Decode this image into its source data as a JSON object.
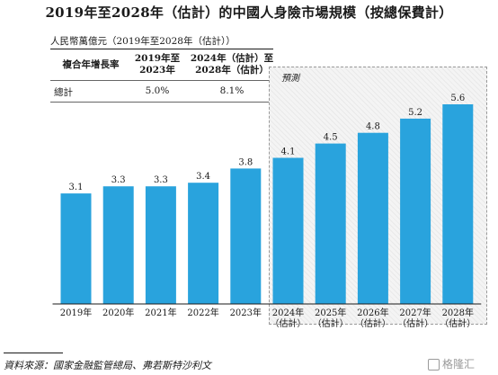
{
  "title": "2019年至2028年（估計）的中國人身險市場規模（按總保費計）",
  "unit_label": "人民幣萬億元（2019年至2028年（估計））",
  "cagr_table": {
    "row_header": "複合年增長率",
    "col1": [
      "2019年至",
      "2023年"
    ],
    "col2": [
      "2024年（估計）至",
      "2028年（估計）"
    ],
    "row_label": "總計",
    "val1": "5.0%",
    "val2": "8.1%"
  },
  "forecast_label": "預測",
  "source": "資料來源：國家金融監管總局、弗若斯特沙利文",
  "watermark": "格隆汇",
  "colors": {
    "bar": "#29a3dd",
    "forecast_bg": "#f4f4f4"
  },
  "chart_data": {
    "type": "bar",
    "categories": [
      "2019年",
      "2020年",
      "2021年",
      "2022年",
      "2023年",
      "2024年（估計）",
      "2025年（估計）",
      "2026年（估計）",
      "2027年（估計）",
      "2028年（估計）"
    ],
    "category_lines": [
      [
        "2019年"
      ],
      [
        "2020年"
      ],
      [
        "2021年"
      ],
      [
        "2022年"
      ],
      [
        "2023年"
      ],
      [
        "2024年",
        "（估計）"
      ],
      [
        "2025年",
        "（估計）"
      ],
      [
        "2026年",
        "（估計）"
      ],
      [
        "2027年",
        "（估計）"
      ],
      [
        "2028年",
        "（估計）"
      ]
    ],
    "values": [
      3.1,
      3.3,
      3.3,
      3.4,
      3.8,
      4.1,
      4.5,
      4.8,
      5.2,
      5.6
    ],
    "value_labels": [
      "3.1",
      "3.3",
      "3.3",
      "3.4",
      "3.8",
      "4.1",
      "4.5",
      "4.8",
      "5.2",
      "5.6"
    ],
    "title": "2019年至2028年（估計）的中國人身險市場規模（按總保費計）",
    "ylabel": "人民幣萬億元（2019年至2028年（估計））",
    "ylim": [
      0,
      5.6
    ],
    "grid": false,
    "forecast_start_index": 5
  }
}
